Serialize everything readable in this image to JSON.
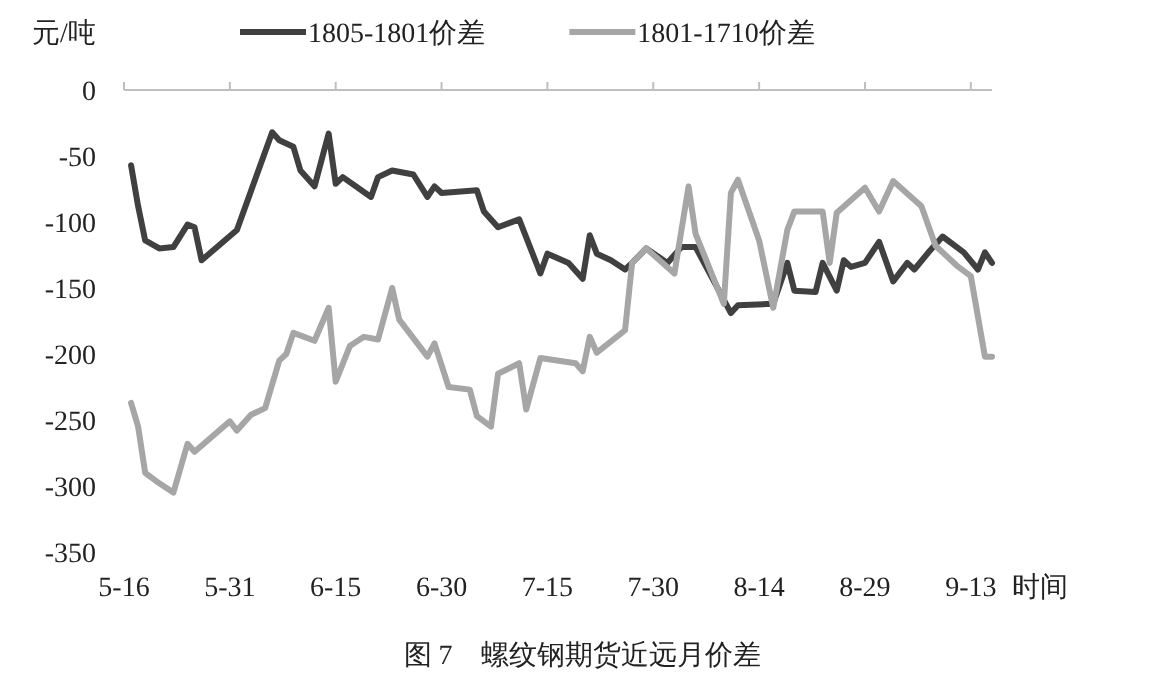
{
  "chart_data": {
    "type": "line",
    "title": "图 7　螺纹钢期货近远月价差",
    "xlabel": "时间",
    "ylabel": "元/吨",
    "xlim": [
      "--05-16",
      "--09-16"
    ],
    "xticks": [
      {
        "value": "--05-16",
        "label": "5-16"
      },
      {
        "value": "--05-31",
        "label": "5-31"
      },
      {
        "value": "--06-15",
        "label": "6-15"
      },
      {
        "value": "--06-30",
        "label": "6-30"
      },
      {
        "value": "--07-15",
        "label": "7-15"
      },
      {
        "value": "--07-30",
        "label": "7-30"
      },
      {
        "value": "--08-14",
        "label": "8-14"
      },
      {
        "value": "--08-29",
        "label": "8-29"
      },
      {
        "value": "--09-13",
        "label": "9-13"
      }
    ],
    "ylim": [
      -350,
      0
    ],
    "yticks": [
      -350,
      -300,
      -250,
      -200,
      -150,
      -100,
      -50,
      0
    ],
    "grid": false,
    "legend": "top",
    "marker": "none",
    "line_style": "solid",
    "series": [
      {
        "name": "1805-1801价差",
        "color": "#404040",
        "x": [
          "--05-17",
          "--05-18",
          "--05-19",
          "--05-21",
          "--05-23",
          "--05-25",
          "--05-26",
          "--05-27",
          "--06-01",
          "--06-06",
          "--06-07",
          "--06-09",
          "--06-10",
          "--06-12",
          "--06-14",
          "--06-15",
          "--06-16",
          "--06-20",
          "--06-21",
          "--06-23",
          "--06-26",
          "--06-28",
          "--06-29",
          "--06-30",
          "--07-05",
          "--07-06",
          "--07-08",
          "--07-11",
          "--07-14",
          "--07-15",
          "--07-18",
          "--07-20",
          "--07-21",
          "--07-22",
          "--07-24",
          "--07-26",
          "--07-27",
          "--07-29",
          "--08-01",
          "--08-03",
          "--08-05",
          "--08-08",
          "--08-10",
          "--08-11",
          "--08-16",
          "--08-18",
          "--08-19",
          "--08-22",
          "--08-23",
          "--08-25",
          "--08-26",
          "--08-27",
          "--08-29",
          "--08-31",
          "--09-02",
          "--09-04",
          "--09-05",
          "--09-07",
          "--09-09",
          "--09-12",
          "--09-14",
          "--09-15",
          "--09-16"
        ],
        "values": [
          -57,
          -88,
          -114,
          -120,
          -119,
          -102,
          -104,
          -129,
          -106,
          -32,
          -38,
          -43,
          -61,
          -73,
          -33,
          -71,
          -66,
          -81,
          -66,
          -61,
          -64,
          -81,
          -73,
          -78,
          -76,
          -92,
          -104,
          -98,
          -139,
          -124,
          -131,
          -143,
          -110,
          -124,
          -129,
          -136,
          -131,
          -120,
          -131,
          -119,
          -119,
          -149,
          -169,
          -163,
          -162,
          -131,
          -152,
          -153,
          -131,
          -152,
          -129,
          -134,
          -131,
          -115,
          -145,
          -131,
          -136,
          -123,
          -111,
          -123,
          -136,
          -123,
          -131
        ]
      },
      {
        "name": "1801-1710价差",
        "color": "#a6a6a6",
        "x": [
          "--05-17",
          "--05-18",
          "--05-19",
          "--05-21",
          "--05-23",
          "--05-25",
          "--05-26",
          "--05-31",
          "--06-01",
          "--06-03",
          "--06-05",
          "--06-07",
          "--06-08",
          "--06-09",
          "--06-12",
          "--06-14",
          "--06-15",
          "--06-17",
          "--06-19",
          "--06-21",
          "--06-23",
          "--06-24",
          "--06-28",
          "--06-29",
          "--07-01",
          "--07-04",
          "--07-05",
          "--07-07",
          "--07-08",
          "--07-11",
          "--07-12",
          "--07-14",
          "--07-19",
          "--07-20",
          "--07-21",
          "--07-22",
          "--07-26",
          "--07-27",
          "--07-29",
          "--08-02",
          "--08-04",
          "--08-05",
          "--08-09",
          "--08-10",
          "--08-11",
          "--08-14",
          "--08-16",
          "--08-18",
          "--08-19",
          "--08-23",
          "--08-24",
          "--08-25",
          "--08-29",
          "--08-31",
          "--09-02",
          "--09-06",
          "--09-08",
          "--09-11",
          "--09-13",
          "--09-15",
          "--09-16"
        ],
        "values": [
          -237,
          -255,
          -290,
          -298,
          -305,
          -268,
          -274,
          -251,
          -258,
          -246,
          -241,
          -205,
          -200,
          -184,
          -190,
          -165,
          -221,
          -194,
          -187,
          -189,
          -150,
          -174,
          -202,
          -192,
          -225,
          -227,
          -247,
          -255,
          -215,
          -207,
          -242,
          -203,
          -207,
          -213,
          -187,
          -199,
          -182,
          -131,
          -120,
          -139,
          -73,
          -109,
          -162,
          -78,
          -68,
          -114,
          -165,
          -106,
          -92,
          -92,
          -131,
          -93,
          -74,
          -92,
          -69,
          -88,
          -118,
          -133,
          -141,
          -202,
          -202
        ]
      }
    ]
  }
}
